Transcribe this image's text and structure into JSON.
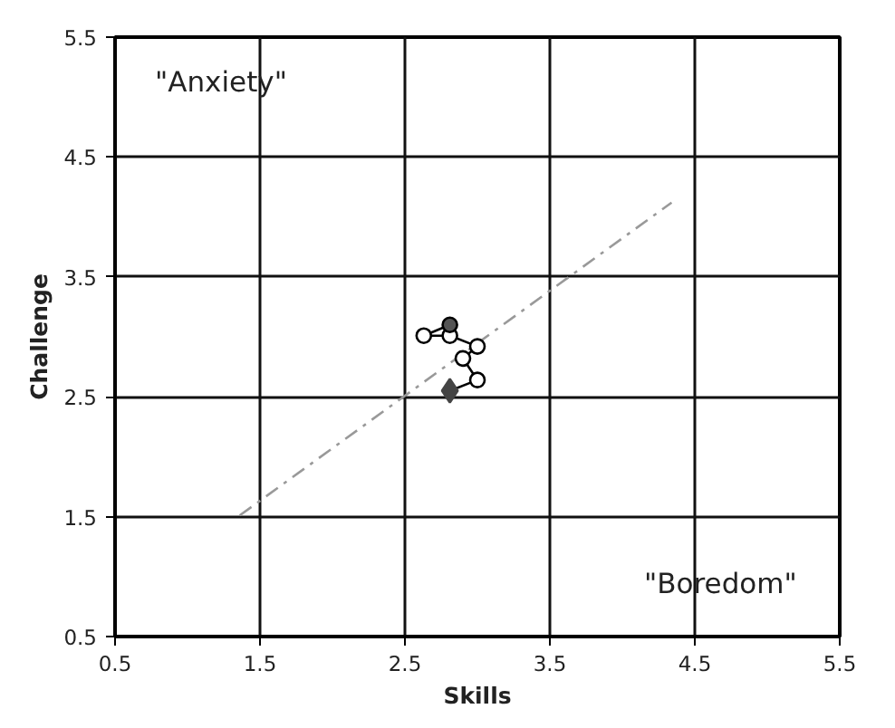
{
  "chart_data": {
    "type": "line",
    "xlabel": "Skills",
    "ylabel": "Challenge",
    "xlim": [
      0.5,
      5.5
    ],
    "ylim": [
      0.5,
      5.5
    ],
    "xticks": [
      0.5,
      1.5,
      2.5,
      3.5,
      4.5,
      5.5
    ],
    "yticks": [
      0.5,
      1.5,
      2.5,
      3.5,
      4.5,
      5.5
    ],
    "grid": true,
    "annotations": [
      "\"Anxiety\"",
      "\"Boredom\""
    ],
    "series": [
      {
        "x": [
          1.36,
          4.34
        ],
        "values": [
          1.51,
          4.12
        ],
        "color": "#999999",
        "line_style": "dashdot",
        "marker": "none"
      },
      {
        "x": [
          2.81,
          3.0,
          2.9,
          3.0,
          2.81,
          2.63,
          2.81
        ],
        "values": [
          2.55,
          2.64,
          2.82,
          2.92,
          3.01,
          3.01,
          3.1
        ],
        "color": "#000000",
        "line_style": "solid",
        "marker": "none"
      },
      {
        "type": "scatter",
        "x": [
          3.0,
          2.9,
          3.0,
          2.81,
          2.63,
          2.81
        ],
        "values": [
          2.64,
          2.82,
          2.92,
          3.01,
          3.01,
          3.1
        ],
        "color": "#000000",
        "colors": [
          "#ffffff",
          "#ffffff",
          "#ffffff",
          "#ffffff",
          "#ffffff",
          "#555555"
        ],
        "marker": "circle"
      },
      {
        "type": "scatter",
        "x": [
          2.81
        ],
        "values": [
          2.55
        ],
        "color": "#444444",
        "marker": "diamond"
      }
    ]
  }
}
